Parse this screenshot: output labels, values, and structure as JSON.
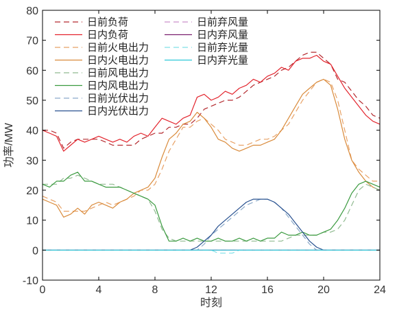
{
  "chart_data": {
    "type": "line",
    "xlabel": "时刻",
    "ylabel": "功率/MW",
    "xlim": [
      0,
      24
    ],
    "ylim": [
      -10,
      80
    ],
    "xticks": [
      0,
      4,
      8,
      12,
      16,
      20,
      24
    ],
    "yticks": [
      -10,
      0,
      10,
      20,
      30,
      40,
      50,
      60,
      70,
      80
    ],
    "grid": false,
    "legend_position": "top-left",
    "x": [
      0,
      0.5,
      1,
      1.5,
      2,
      2.5,
      3,
      3.5,
      4,
      4.5,
      5,
      5.5,
      6,
      6.5,
      7,
      7.5,
      8,
      8.5,
      9,
      9.5,
      10,
      10.5,
      11,
      11.5,
      12,
      12.5,
      13,
      13.5,
      14,
      14.5,
      15,
      15.5,
      16,
      16.5,
      17,
      17.5,
      18,
      18.5,
      19,
      19.5,
      20,
      20.5,
      21,
      21.5,
      22,
      22.5,
      23,
      23.5,
      24
    ],
    "series": [
      {
        "name": "日前负荷",
        "color": "#b3282d",
        "dash": "dashed",
        "values": [
          40,
          40,
          39,
          34,
          36,
          37,
          37,
          37,
          37,
          36,
          35,
          35,
          35,
          35,
          37,
          38,
          39,
          39,
          41,
          41,
          42,
          42,
          44,
          47,
          48,
          49,
          50,
          50,
          51,
          53,
          55,
          56,
          57,
          58,
          60,
          61,
          63,
          65,
          66,
          66,
          64,
          62,
          57,
          56,
          53,
          50,
          48,
          45,
          44
        ]
      },
      {
        "name": "日内负荷",
        "color": "#e3232c",
        "dash": "solid",
        "values": [
          40,
          39,
          38,
          33,
          35,
          37,
          36,
          37,
          38,
          37,
          36,
          37,
          36,
          38,
          39,
          38,
          41,
          44,
          43,
          42,
          44,
          45,
          51,
          52,
          50,
          51,
          53,
          52,
          54,
          55,
          57,
          56,
          58,
          59,
          61,
          60,
          63,
          64,
          64,
          65,
          63,
          62,
          58,
          54,
          51,
          48,
          45,
          43,
          42
        ]
      },
      {
        "name": "日前火电出力",
        "color": "#e8a165",
        "dash": "dashed",
        "values": [
          18,
          17,
          16,
          13,
          13,
          13,
          13,
          14,
          15,
          16,
          15,
          16,
          17,
          18,
          20,
          20,
          22,
          27,
          33,
          37,
          41,
          41,
          43,
          44,
          42,
          40,
          37,
          36,
          35,
          35,
          36,
          37,
          37,
          38,
          40,
          42,
          46,
          50,
          53,
          56,
          57,
          56,
          50,
          40,
          30,
          27,
          25,
          23,
          23
        ]
      },
      {
        "name": "日内火电出力",
        "color": "#d98a3a",
        "dash": "solid",
        "values": [
          17,
          16,
          15,
          11,
          12,
          14,
          12,
          15,
          16,
          15,
          14,
          16,
          17,
          19,
          20,
          21,
          24,
          31,
          37,
          39,
          42,
          43,
          46,
          44,
          41,
          37,
          36,
          34,
          33,
          34,
          35,
          35,
          36,
          37,
          40,
          44,
          48,
          52,
          54,
          56,
          57,
          55,
          47,
          37,
          30,
          26,
          23,
          21,
          20
        ]
      },
      {
        "name": "日前风电出力",
        "color": "#8fba8f",
        "dash": "dashed",
        "values": [
          22,
          22,
          22,
          24,
          24,
          25,
          24,
          23,
          22,
          22,
          22,
          21,
          20,
          19,
          18,
          17,
          13,
          7,
          4,
          3,
          3,
          3,
          3,
          3,
          3,
          3,
          3,
          3,
          3,
          3,
          3,
          3,
          3,
          3,
          3,
          4,
          5,
          5,
          5,
          5,
          6,
          6,
          7,
          10,
          15,
          20,
          22,
          21,
          20
        ]
      },
      {
        "name": "日内风电出力",
        "color": "#3a9a3f",
        "dash": "solid",
        "values": [
          22,
          21,
          23,
          23,
          25,
          26,
          23,
          23,
          22,
          21,
          21,
          21,
          20,
          19,
          18,
          17,
          15,
          8,
          3,
          3,
          4,
          3,
          4,
          3,
          3,
          4,
          3,
          3,
          4,
          3,
          4,
          3,
          4,
          4,
          6,
          5,
          5,
          6,
          5,
          5,
          6,
          7,
          10,
          14,
          19,
          22,
          23,
          22,
          21
        ]
      },
      {
        "name": "日前光伏出力",
        "color": "#8aa9c9",
        "dash": "dashed",
        "values": [
          0,
          0,
          0,
          0,
          0,
          0,
          0,
          0,
          0,
          0,
          0,
          0,
          0,
          0,
          0,
          0,
          0,
          0,
          0,
          0,
          0,
          0,
          0,
          2,
          5,
          7,
          9,
          11,
          13,
          15,
          16,
          17,
          17,
          16,
          14,
          11,
          8,
          5,
          2,
          0,
          0,
          0,
          0,
          0,
          0,
          0,
          0,
          0,
          0
        ]
      },
      {
        "name": "日内光伏出力",
        "color": "#27508f",
        "dash": "solid",
        "values": [
          0,
          0,
          0,
          0,
          0,
          0,
          0,
          0,
          0,
          0,
          0,
          0,
          0,
          0,
          0,
          0,
          0,
          0,
          0,
          0,
          0,
          0,
          1,
          3,
          5,
          8,
          10,
          12,
          14,
          16,
          17,
          17,
          17,
          16,
          14,
          12,
          9,
          6,
          3,
          1,
          0,
          0,
          0,
          0,
          0,
          0,
          0,
          0,
          0
        ]
      },
      {
        "name": "日前弃风量",
        "color": "#c98fc9",
        "dash": "dashed",
        "values": [
          0,
          0,
          0,
          0,
          0,
          0,
          0,
          0,
          0,
          0,
          0,
          0,
          0,
          0,
          0,
          0,
          0,
          0,
          0,
          0,
          0,
          0,
          0,
          0,
          0,
          0,
          0,
          0,
          0,
          0,
          0,
          0,
          0,
          0,
          0,
          0,
          0,
          0,
          0,
          0,
          0,
          0,
          0,
          0,
          0,
          0,
          0,
          0,
          0
        ]
      },
      {
        "name": "日内弃风量",
        "color": "#7a1f6e",
        "dash": "solid",
        "values": [
          0,
          0,
          0,
          0,
          0,
          0,
          0,
          0,
          0,
          0,
          0,
          0,
          0,
          0,
          0,
          0,
          0,
          0,
          0,
          0,
          0,
          0,
          0,
          0,
          0,
          0,
          0,
          0,
          0,
          0,
          0,
          0,
          0,
          0,
          0,
          0,
          0,
          0,
          0,
          0,
          0,
          0,
          0,
          0,
          0,
          0,
          0,
          0,
          0
        ]
      },
      {
        "name": "日前弃光量",
        "color": "#7fe0e8",
        "dash": "dashed",
        "values": [
          0,
          0,
          0,
          0,
          0,
          0,
          0,
          0,
          0,
          0,
          0,
          0,
          0,
          0,
          0,
          0,
          0,
          0,
          0,
          0,
          0,
          0,
          0,
          0,
          0,
          -1,
          -1,
          -1,
          0,
          0,
          0,
          0,
          0,
          0,
          0,
          0,
          0,
          0,
          0,
          0,
          0,
          0,
          0,
          0,
          0,
          0,
          0,
          0,
          0
        ]
      },
      {
        "name": "日内弃光量",
        "color": "#2cc8d8",
        "dash": "solid",
        "values": [
          0,
          0,
          0,
          0,
          0,
          0,
          0,
          0,
          0,
          0,
          0,
          0,
          0,
          0,
          0,
          0,
          0,
          0,
          0,
          0,
          0,
          0,
          0,
          0,
          0,
          0,
          0,
          0,
          0,
          0,
          0,
          0,
          0,
          0,
          0,
          0,
          0,
          0,
          0,
          0,
          0,
          0,
          0,
          0,
          0,
          0,
          0,
          0,
          0
        ]
      }
    ]
  }
}
